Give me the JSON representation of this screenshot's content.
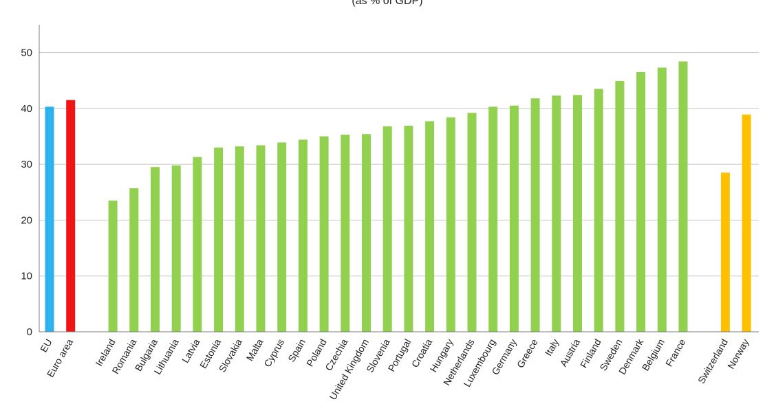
{
  "chart_data": {
    "type": "bar",
    "title": "(as % of GDP)",
    "xlabel": "",
    "ylabel": "",
    "ylim": [
      0,
      55
    ],
    "yticks": [
      0,
      10,
      20,
      30,
      40,
      50
    ],
    "grid": true,
    "legend": "none",
    "categories": [
      "EU",
      "Euro area",
      "Ireland",
      "Romania",
      "Bulgaria",
      "Lithuania",
      "Latvia",
      "Estonia",
      "Slovakia",
      "Malta",
      "Cyprus",
      "Spain",
      "Poland",
      "Czechia",
      "United Kingdom",
      "Slovenia",
      "Portugal",
      "Croatia",
      "Hungary",
      "Netherlands",
      "Luxembourg",
      "Germany",
      "Greece",
      "Italy",
      "Austria",
      "Finland",
      "Sweden",
      "Denmark",
      "Belgium",
      "France",
      "Switzerland",
      "Norway"
    ],
    "values": [
      40.3,
      41.5,
      23.5,
      25.7,
      29.5,
      29.8,
      31.3,
      33.0,
      33.2,
      33.4,
      33.9,
      34.4,
      35.0,
      35.3,
      35.4,
      36.8,
      36.9,
      37.7,
      38.4,
      39.2,
      40.3,
      40.5,
      41.8,
      42.3,
      42.4,
      43.5,
      44.9,
      46.5,
      47.3,
      48.4,
      28.5,
      38.9
    ],
    "bar_colors": [
      "#2EB2EE",
      "#F21414",
      "#92D050",
      "#92D050",
      "#92D050",
      "#92D050",
      "#92D050",
      "#92D050",
      "#92D050",
      "#92D050",
      "#92D050",
      "#92D050",
      "#92D050",
      "#92D050",
      "#92D050",
      "#92D050",
      "#92D050",
      "#92D050",
      "#92D050",
      "#92D050",
      "#92D050",
      "#92D050",
      "#92D050",
      "#92D050",
      "#92D050",
      "#92D050",
      "#92D050",
      "#92D050",
      "#92D050",
      "#92D050",
      "#FFC000",
      "#FFC000"
    ],
    "gridline_color": "#C8C8C8",
    "axis_color": "#7F7F7F"
  }
}
